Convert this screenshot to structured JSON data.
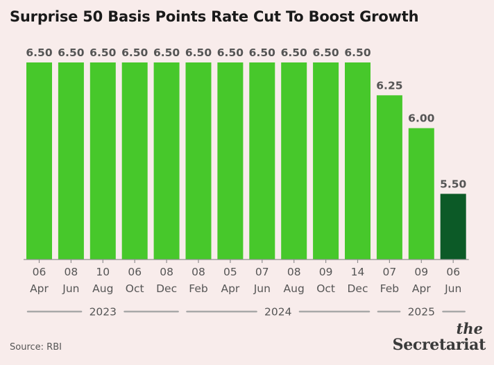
{
  "title": "Surprise 50 Basis Points Rate Cut To Boost Growth",
  "source": "Source: RBI",
  "logo": {
    "line1": "the",
    "line2": "Secretariat"
  },
  "colors": {
    "bar": "#47c82b",
    "highlight": "#0c5a27",
    "background": "#f8eceb",
    "axis": "#8f8f8f",
    "label": "#555555"
  },
  "chart_data": {
    "type": "bar",
    "title": "Surprise 50 Basis Points Rate Cut To Boost Growth",
    "xlabel": "",
    "ylabel": "",
    "ylim": [
      0,
      6.5
    ],
    "grid": false,
    "categories": [
      {
        "day": "06",
        "month": "Apr"
      },
      {
        "day": "08",
        "month": "Jun"
      },
      {
        "day": "10",
        "month": "Aug"
      },
      {
        "day": "06",
        "month": "Oct"
      },
      {
        "day": "08",
        "month": "Dec"
      },
      {
        "day": "08",
        "month": "Feb"
      },
      {
        "day": "05",
        "month": "Apr"
      },
      {
        "day": "07",
        "month": "Jun"
      },
      {
        "day": "08",
        "month": "Aug"
      },
      {
        "day": "09",
        "month": "Oct"
      },
      {
        "day": "14",
        "month": "Dec"
      },
      {
        "day": "07",
        "month": "Feb"
      },
      {
        "day": "09",
        "month": "Apr"
      },
      {
        "day": "06",
        "month": "Jun"
      }
    ],
    "values": [
      6.5,
      6.5,
      6.5,
      6.5,
      6.5,
      6.5,
      6.5,
      6.5,
      6.5,
      6.5,
      6.5,
      6.25,
      6.0,
      5.5
    ],
    "value_labels": [
      "6.50",
      "6.50",
      "6.50",
      "6.50",
      "6.50",
      "6.50",
      "6.50",
      "6.50",
      "6.50",
      "6.50",
      "6.50",
      "6.25",
      "6.00",
      "5.50"
    ],
    "highlight_index": 13,
    "years": [
      {
        "label": "2023",
        "from": 0,
        "to": 4
      },
      {
        "label": "2024",
        "from": 5,
        "to": 10
      },
      {
        "label": "2025",
        "from": 11,
        "to": 13
      }
    ]
  }
}
